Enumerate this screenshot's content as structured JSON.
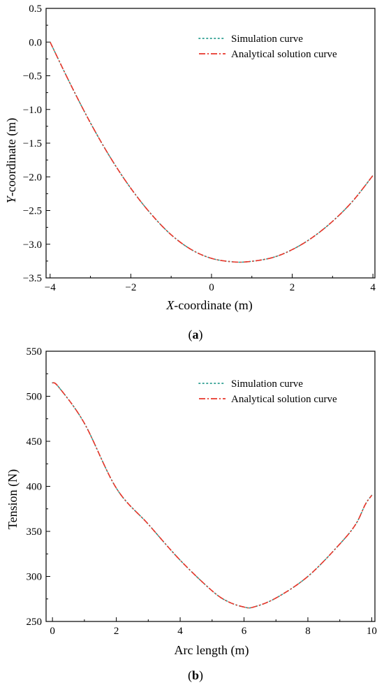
{
  "colors": {
    "simulation": "#2a9d8f",
    "analytical": "#e8362a"
  },
  "chart_data": [
    {
      "type": "line",
      "caption_letter": "a",
      "xlabel_italic": "X",
      "xlabel_rest": "-coordinate (m)",
      "ylabel_italic": "Y",
      "ylabel_rest": "-coordinate (m)",
      "xlim": [
        -4.1,
        4.05
      ],
      "ylim": [
        -3.5,
        0.5
      ],
      "xticks": [
        -4,
        -2,
        0,
        2,
        4
      ],
      "xtick_labels": [
        "−4",
        "−2",
        "0",
        "2",
        "4"
      ],
      "yticks": [
        0.5,
        0.0,
        -0.5,
        -1.0,
        -1.5,
        -2.0,
        -2.5,
        -3.0,
        -3.5
      ],
      "ytick_labels": [
        "0.5",
        "0.0",
        "−0.5",
        "−1.0",
        "−1.5",
        "−2.0",
        "−2.5",
        "−3.0",
        "−3.5"
      ],
      "legend": [
        "Simulation curve",
        "Analytical solution curve"
      ],
      "legend_position": "top-right",
      "series": [
        {
          "name": "Simulation curve",
          "x": [
            -4.0,
            -3.5,
            -3.0,
            -2.5,
            -2.0,
            -1.5,
            -1.0,
            -0.5,
            0.0,
            0.5,
            0.9,
            1.5,
            2.0,
            2.5,
            3.0,
            3.5,
            4.0
          ],
          "y": [
            0.0,
            -0.62,
            -1.2,
            -1.72,
            -2.17,
            -2.55,
            -2.86,
            -3.08,
            -3.21,
            -3.26,
            -3.26,
            -3.2,
            -3.08,
            -2.9,
            -2.66,
            -2.36,
            -1.98
          ]
        },
        {
          "name": "Analytical solution curve",
          "x": [
            -4.0,
            -3.5,
            -3.0,
            -2.5,
            -2.0,
            -1.5,
            -1.0,
            -0.5,
            0.0,
            0.5,
            0.9,
            1.5,
            2.0,
            2.5,
            3.0,
            3.5,
            4.0
          ],
          "y": [
            0.0,
            -0.62,
            -1.2,
            -1.72,
            -2.17,
            -2.55,
            -2.86,
            -3.08,
            -3.21,
            -3.26,
            -3.26,
            -3.2,
            -3.08,
            -2.9,
            -2.66,
            -2.36,
            -1.98
          ]
        }
      ]
    },
    {
      "type": "line",
      "caption_letter": "b",
      "xlabel": "Arc length (m)",
      "ylabel": "Tension (N)",
      "xlim": [
        -0.2,
        10.1
      ],
      "ylim": [
        250,
        550
      ],
      "xticks": [
        0,
        2,
        4,
        6,
        8,
        10
      ],
      "xtick_labels": [
        "0",
        "2",
        "4",
        "6",
        "8",
        "10"
      ],
      "yticks": [
        550,
        500,
        450,
        400,
        350,
        300,
        250
      ],
      "ytick_labels": [
        "550",
        "500",
        "450",
        "400",
        "350",
        "300",
        "250"
      ],
      "legend": [
        "Simulation curve",
        "Analytical solution curve"
      ],
      "legend_position": "top-right",
      "series": [
        {
          "name": "Simulation curve",
          "x": [
            0.0,
            0.2,
            1.0,
            2.0,
            3.0,
            4.0,
            5.0,
            5.5,
            6.0,
            6.3,
            7.0,
            8.0,
            9.0,
            9.5,
            9.8,
            10.0
          ],
          "y": [
            515,
            510,
            470,
            398,
            358,
            318,
            284,
            272,
            266,
            266,
            276,
            300,
            336,
            358,
            380,
            390
          ]
        },
        {
          "name": "Analytical solution curve",
          "x": [
            0.0,
            0.2,
            1.0,
            2.0,
            3.0,
            4.0,
            5.0,
            5.5,
            6.0,
            6.3,
            7.0,
            8.0,
            9.0,
            9.5,
            9.8,
            10.0
          ],
          "y": [
            515,
            510,
            470,
            398,
            358,
            318,
            284,
            272,
            266,
            266,
            276,
            300,
            336,
            358,
            380,
            390
          ]
        }
      ]
    }
  ]
}
